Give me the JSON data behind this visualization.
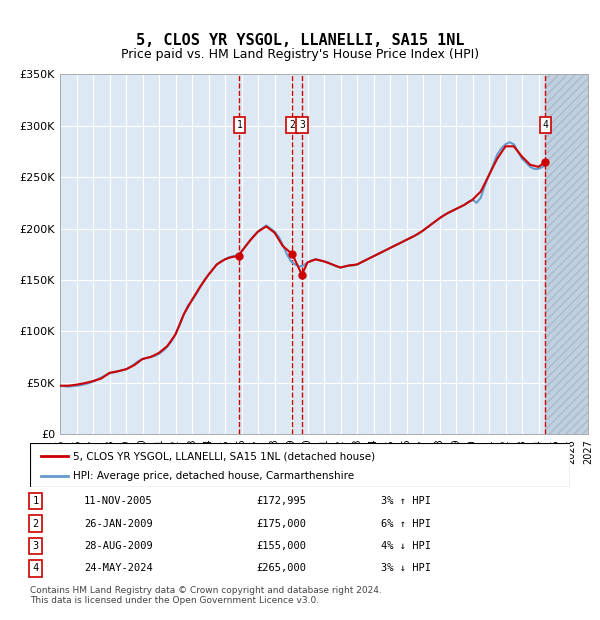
{
  "title": "5, CLOS YR YSGOL, LLANELLI, SA15 1NL",
  "subtitle": "Price paid vs. HM Land Registry's House Price Index (HPI)",
  "legend_line1": "5, CLOS YR YSGOL, LLANELLI, SA15 1NL (detached house)",
  "legend_line2": "HPI: Average price, detached house, Carmarthenshire",
  "footer": "Contains HM Land Registry data © Crown copyright and database right 2024.\nThis data is licensed under the Open Government Licence v3.0.",
  "ylim": [
    0,
    350000
  ],
  "yticks": [
    0,
    50000,
    100000,
    150000,
    200000,
    250000,
    300000,
    350000
  ],
  "ytick_labels": [
    "£0",
    "£50K",
    "£100K",
    "£150K",
    "£200K",
    "£250K",
    "£300K",
    "£350K"
  ],
  "xlim_start": 1995.0,
  "xlim_end": 2027.0,
  "future_start": 2024.42,
  "bg_color": "#dce9f5",
  "hatch_color": "#c0d0e0",
  "grid_color": "#ffffff",
  "red_color": "#cc0000",
  "blue_color": "#6699cc",
  "sale_points": [
    {
      "num": 1,
      "year": 2005.87,
      "price": 172995,
      "label": "11-NOV-2005",
      "price_str": "£172,995",
      "pct": "3%",
      "dir": "↑"
    },
    {
      "num": 2,
      "year": 2009.08,
      "price": 175000,
      "label": "26-JAN-2009",
      "price_str": "£175,000",
      "pct": "6%",
      "dir": "↑"
    },
    {
      "num": 3,
      "year": 2009.66,
      "price": 155000,
      "label": "28-AUG-2009",
      "price_str": "£155,000",
      "pct": "4%",
      "dir": "↓"
    },
    {
      "num": 4,
      "year": 2024.42,
      "price": 265000,
      "label": "24-MAY-2024",
      "price_str": "£265,000",
      "pct": "3%",
      "dir": "↓"
    }
  ],
  "hpi_data": {
    "years": [
      1995.0,
      1995.25,
      1995.5,
      1995.75,
      1996.0,
      1996.25,
      1996.5,
      1996.75,
      1997.0,
      1997.25,
      1997.5,
      1997.75,
      1998.0,
      1998.25,
      1998.5,
      1998.75,
      1999.0,
      1999.25,
      1999.5,
      1999.75,
      2000.0,
      2000.25,
      2000.5,
      2000.75,
      2001.0,
      2001.25,
      2001.5,
      2001.75,
      2002.0,
      2002.25,
      2002.5,
      2002.75,
      2003.0,
      2003.25,
      2003.5,
      2003.75,
      2004.0,
      2004.25,
      2004.5,
      2004.75,
      2005.0,
      2005.25,
      2005.5,
      2005.75,
      2006.0,
      2006.25,
      2006.5,
      2006.75,
      2007.0,
      2007.25,
      2007.5,
      2007.75,
      2008.0,
      2008.25,
      2008.5,
      2008.75,
      2009.0,
      2009.25,
      2009.5,
      2009.75,
      2010.0,
      2010.25,
      2010.5,
      2010.75,
      2011.0,
      2011.25,
      2011.5,
      2011.75,
      2012.0,
      2012.25,
      2012.5,
      2012.75,
      2013.0,
      2013.25,
      2013.5,
      2013.75,
      2014.0,
      2014.25,
      2014.5,
      2014.75,
      2015.0,
      2015.25,
      2015.5,
      2015.75,
      2016.0,
      2016.25,
      2016.5,
      2016.75,
      2017.0,
      2017.25,
      2017.5,
      2017.75,
      2018.0,
      2018.25,
      2018.5,
      2018.75,
      2019.0,
      2019.25,
      2019.5,
      2019.75,
      2020.0,
      2020.25,
      2020.5,
      2020.75,
      2021.0,
      2021.25,
      2021.5,
      2021.75,
      2022.0,
      2022.25,
      2022.5,
      2022.75,
      2023.0,
      2023.25,
      2023.5,
      2023.75,
      2024.0,
      2024.25,
      2024.42
    ],
    "values": [
      47000,
      46500,
      46200,
      46500,
      47000,
      47500,
      48500,
      49500,
      51000,
      53000,
      55000,
      57000,
      59000,
      60000,
      61000,
      62000,
      63000,
      65000,
      68000,
      71000,
      73000,
      74000,
      75000,
      76000,
      78000,
      81000,
      85000,
      90000,
      97000,
      106000,
      116000,
      125000,
      130000,
      136000,
      143000,
      150000,
      155000,
      160000,
      165000,
      168000,
      170000,
      172000,
      173000,
      174000,
      178000,
      183000,
      188000,
      193000,
      197000,
      200000,
      203000,
      200000,
      197000,
      192000,
      184000,
      175000,
      168000,
      165000,
      163000,
      164000,
      167000,
      169000,
      170000,
      169000,
      168000,
      167000,
      165000,
      163000,
      162000,
      163000,
      164000,
      164000,
      165000,
      167000,
      169000,
      171000,
      173000,
      175000,
      177000,
      179000,
      181000,
      183000,
      185000,
      187000,
      189000,
      191000,
      193000,
      195000,
      198000,
      201000,
      204000,
      207000,
      210000,
      213000,
      215000,
      217000,
      219000,
      221000,
      223000,
      226000,
      228000,
      225000,
      230000,
      242000,
      252000,
      262000,
      272000,
      278000,
      282000,
      284000,
      282000,
      275000,
      268000,
      264000,
      260000,
      258000,
      258000,
      260000,
      262000
    ]
  },
  "price_data": {
    "years": [
      1995.0,
      1995.5,
      1996.0,
      1996.5,
      1997.0,
      1997.5,
      1998.0,
      1998.5,
      1999.0,
      1999.5,
      2000.0,
      2000.5,
      2001.0,
      2001.5,
      2002.0,
      2002.5,
      2003.0,
      2003.5,
      2004.0,
      2004.5,
      2005.0,
      2005.25,
      2005.5,
      2005.75,
      2005.87,
      2006.0,
      2006.5,
      2007.0,
      2007.5,
      2008.0,
      2008.5,
      2009.08,
      2009.66,
      2010.0,
      2010.5,
      2011.0,
      2011.5,
      2012.0,
      2012.5,
      2013.0,
      2013.5,
      2014.0,
      2014.5,
      2015.0,
      2015.5,
      2016.0,
      2016.5,
      2017.0,
      2017.5,
      2018.0,
      2018.5,
      2019.0,
      2019.5,
      2020.0,
      2020.5,
      2021.0,
      2021.5,
      2022.0,
      2022.5,
      2023.0,
      2023.5,
      2024.0,
      2024.42
    ],
    "values": [
      47000,
      47000,
      48000,
      49500,
      51500,
      54000,
      59500,
      61000,
      63000,
      67000,
      73000,
      75000,
      79000,
      85500,
      97000,
      116500,
      130500,
      143500,
      155000,
      165000,
      170000,
      171500,
      172500,
      173000,
      172995,
      177500,
      188000,
      197000,
      202000,
      196000,
      183000,
      175000,
      155000,
      167000,
      170000,
      168000,
      165000,
      162000,
      164000,
      165000,
      169000,
      173000,
      177000,
      181000,
      185000,
      189000,
      193000,
      198000,
      204000,
      210000,
      215000,
      219000,
      223000,
      228000,
      236000,
      252000,
      268000,
      280000,
      280000,
      270000,
      262000,
      260000,
      265000
    ]
  }
}
